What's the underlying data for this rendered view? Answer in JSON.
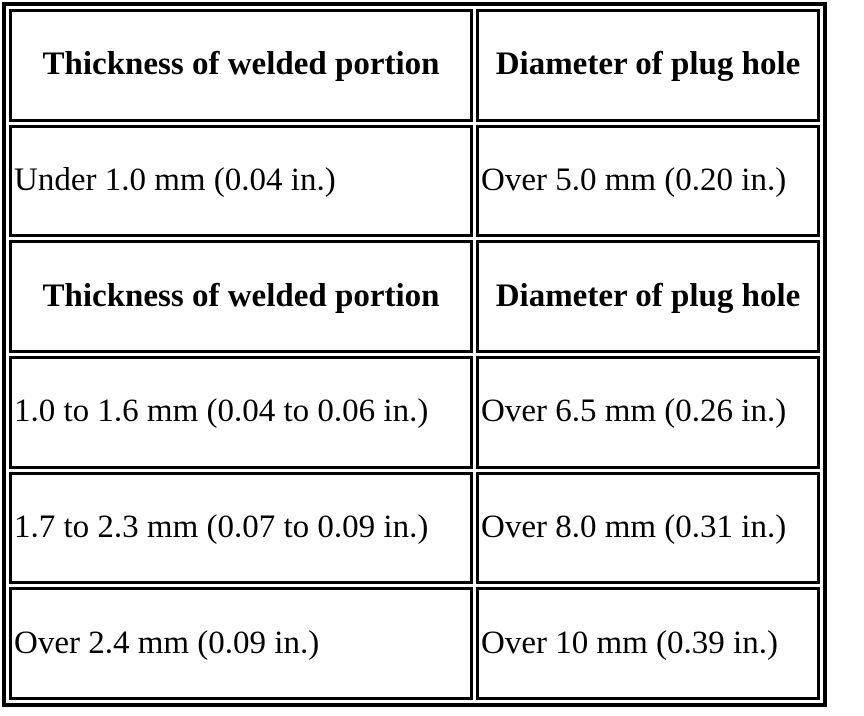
{
  "colors": {
    "background": "#ffffff",
    "border": "#000000",
    "text": "#000000"
  },
  "table": {
    "rows": [
      {
        "type": "header",
        "cells": [
          {
            "text": "Thickness of welded portion"
          },
          {
            "text": "Diameter of plug hole"
          }
        ]
      },
      {
        "type": "data",
        "cells": [
          {
            "text": "Under 1.0 mm (0.04 in.)"
          },
          {
            "text": "Over 5.0 mm (0.20 in.)"
          }
        ]
      },
      {
        "type": "header",
        "cells": [
          {
            "text": "Thickness of welded portion"
          },
          {
            "text": "Diameter of plug hole"
          }
        ]
      },
      {
        "type": "data",
        "cells": [
          {
            "text": "1.0 to 1.6 mm (0.04 to 0.06 in.)"
          },
          {
            "text": "Over 6.5 mm (0.26 in.)"
          }
        ]
      },
      {
        "type": "data",
        "cells": [
          {
            "text": "1.7 to 2.3 mm (0.07 to 0.09 in.)"
          },
          {
            "text": "Over 8.0 mm (0.31 in.)"
          }
        ]
      },
      {
        "type": "data",
        "cells": [
          {
            "text": "Over 2.4 mm (0.09 in.)"
          },
          {
            "text": "Over 10 mm (0.39 in.)"
          }
        ]
      }
    ]
  }
}
